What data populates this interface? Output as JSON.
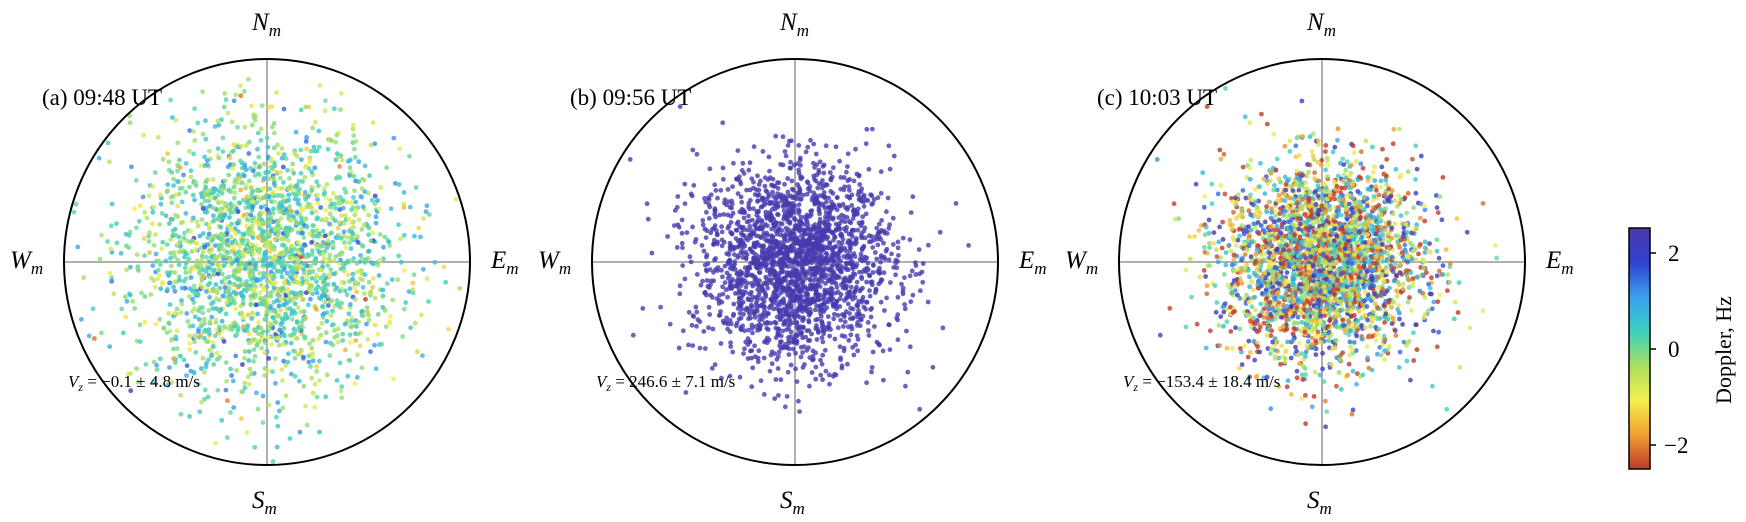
{
  "figure": {
    "panels": [
      {
        "label": "(a) 09:48 UT",
        "vz_text": {
          "prefix": "V",
          "sub": "z",
          "value": " = −0.1 ± 4.8 m/s"
        },
        "directions": {
          "north": "N",
          "south": "S",
          "west": "W",
          "east": "E",
          "sub": "m"
        }
      },
      {
        "label": "(b) 09:56 UT",
        "vz_text": {
          "prefix": "V",
          "sub": "z",
          "value": " = 246.6 ± 7.1 m/s"
        },
        "directions": {
          "north": "N",
          "south": "S",
          "west": "W",
          "east": "E",
          "sub": "m"
        }
      },
      {
        "label": "(c) 10:03 UT",
        "vz_text": {
          "prefix": "V",
          "sub": "z",
          "value": " = −153.4 ± 18.4 m/s"
        },
        "directions": {
          "north": "N",
          "south": "S",
          "west": "W",
          "east": "E",
          "sub": "m"
        }
      }
    ],
    "colorbar": {
      "label": "Doppler, Hz",
      "ticks": [
        "2",
        "0",
        "−2"
      ],
      "colormap": [
        "#c0392b",
        "#f0a030",
        "#f5f050",
        "#a8e060",
        "#3ad0c0",
        "#3aa0f0",
        "#3040d0",
        "#4a3aa8"
      ]
    }
  },
  "chart_data": {
    "type": "scatter",
    "description_axes": "polar sky map, horizontal axis West(m) to East(m), vertical axis South(m) to North(m), normalized radius 1",
    "color_variable": "Doppler, Hz",
    "color_range": [
      -2.5,
      2.5
    ],
    "series": [
      {
        "name": "(a) 09:48 UT",
        "n_points": 2200,
        "spread": 0.32,
        "doppler_mean": 0.0,
        "doppler_spread": 0.7,
        "vz_mps": -0.1,
        "vz_err_mps": 4.8
      },
      {
        "name": "(b) 09:56 UT",
        "n_points": 2200,
        "spread": 0.24,
        "doppler_mean": 2.4,
        "doppler_spread": 0.05,
        "vz_mps": 246.6,
        "vz_err_mps": 7.1
      },
      {
        "name": "(c) 10:03 UT",
        "n_points": 3000,
        "spread": 0.24,
        "doppler_mean": -0.4,
        "doppler_spread": 1.8,
        "vz_mps": -153.4,
        "vz_err_mps": 18.4
      }
    ]
  }
}
